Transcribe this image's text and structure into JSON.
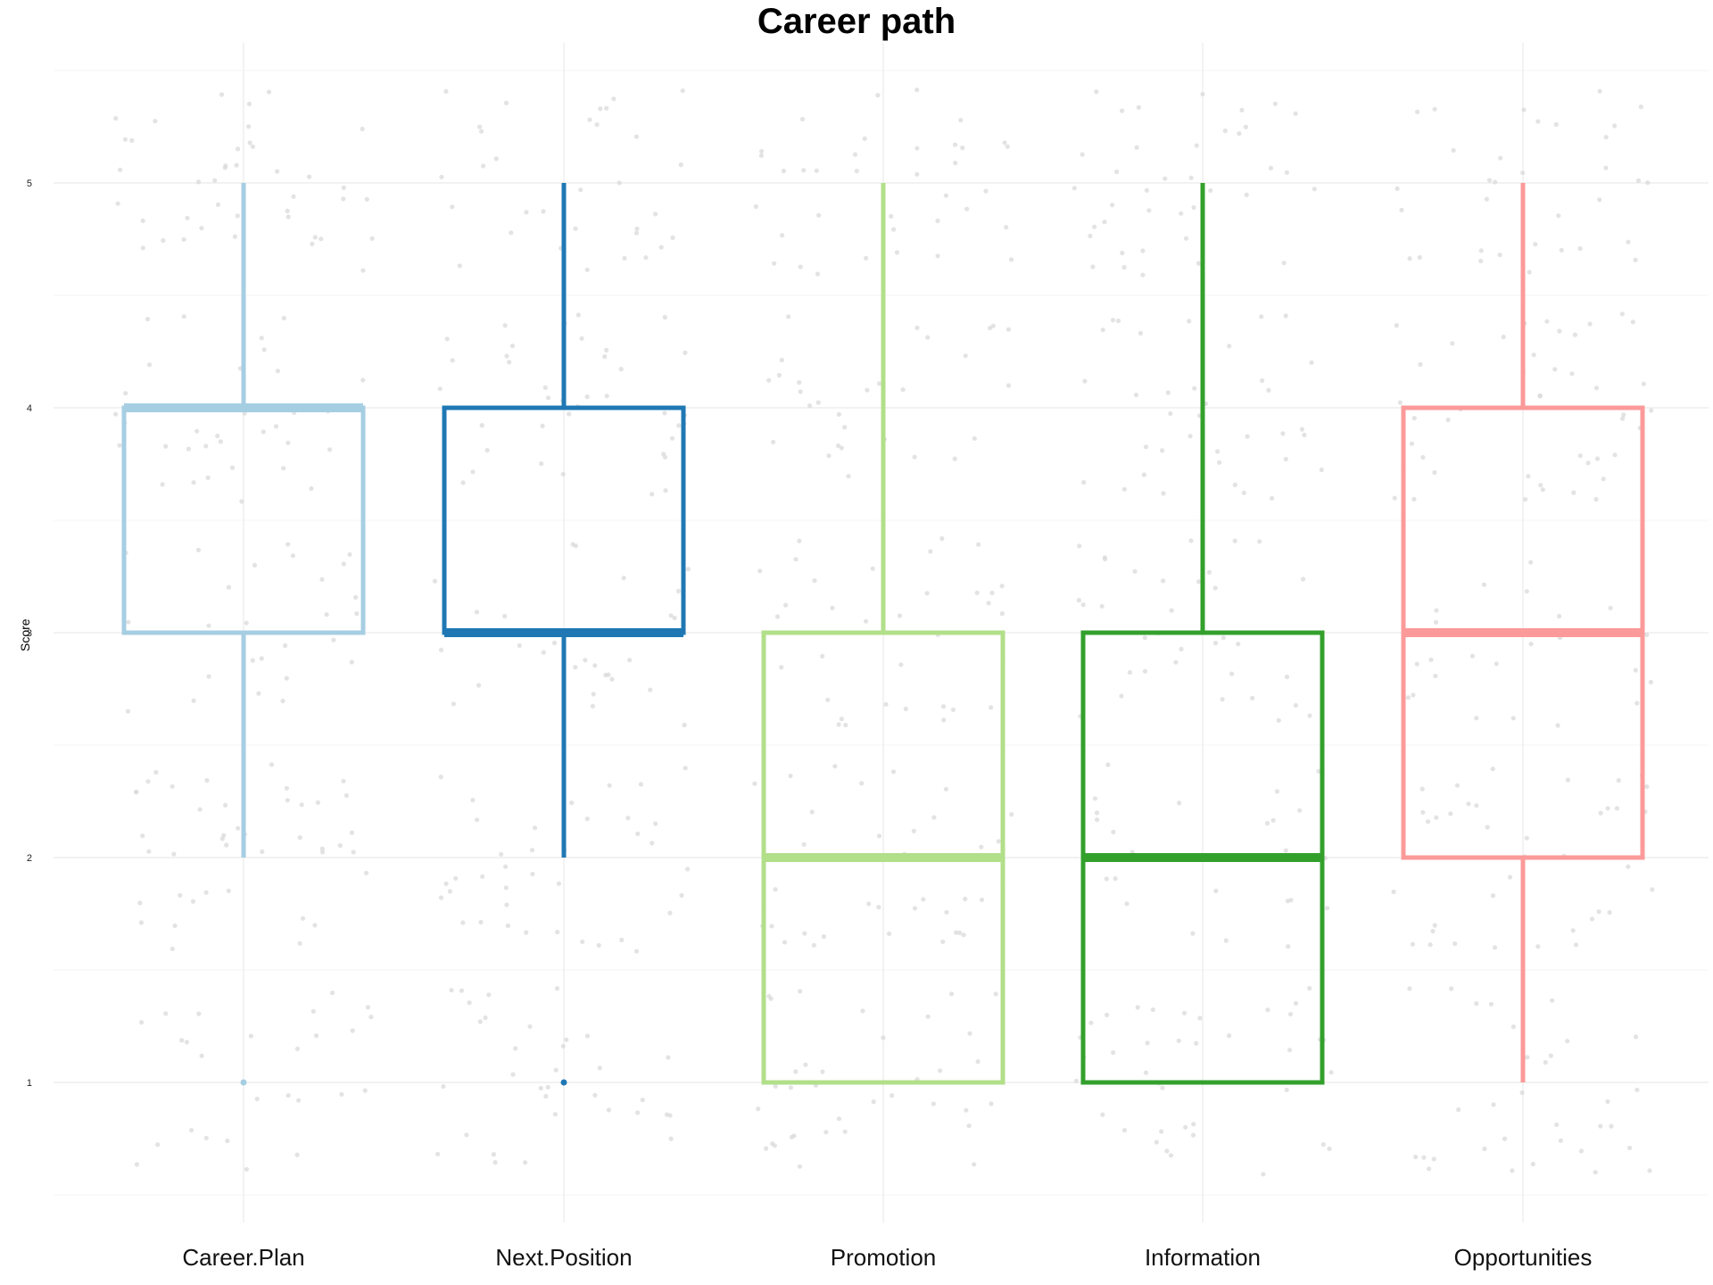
{
  "chart_data": {
    "type": "boxplot",
    "title": "Career path",
    "xlabel": "",
    "ylabel": "Score",
    "ylim": [
      0.4,
      5.6
    ],
    "y_ticks": [
      1,
      2,
      3,
      4,
      5
    ],
    "grid": true,
    "categories": [
      "Career.Plan",
      "Next.Position",
      "Promotion",
      "Information",
      "Opportunities"
    ],
    "boxes": [
      {
        "category": "Career.Plan",
        "whisker_low": 2,
        "q1": 3,
        "median": 4,
        "q3": 4,
        "whisker_high": 5,
        "outliers": [
          1
        ],
        "color": "#a6cee3"
      },
      {
        "category": "Next.Position",
        "whisker_low": 2,
        "q1": 3,
        "median": 3,
        "q3": 4,
        "whisker_high": 5,
        "outliers": [
          1
        ],
        "color": "#1f78b4"
      },
      {
        "category": "Promotion",
        "whisker_low": 1,
        "q1": 1,
        "median": 2,
        "q3": 3,
        "whisker_high": 5,
        "outliers": [],
        "color": "#b2df8a"
      },
      {
        "category": "Information",
        "whisker_low": 1,
        "q1": 1,
        "median": 2,
        "q3": 3,
        "whisker_high": 5,
        "outliers": [],
        "color": "#33a02c"
      },
      {
        "category": "Opportunities",
        "whisker_low": 1,
        "q1": 2,
        "median": 3,
        "q3": 4,
        "whisker_high": 5,
        "outliers": [],
        "color": "#fb9a99"
      }
    ],
    "jitter_color": "#d9d9d9"
  }
}
